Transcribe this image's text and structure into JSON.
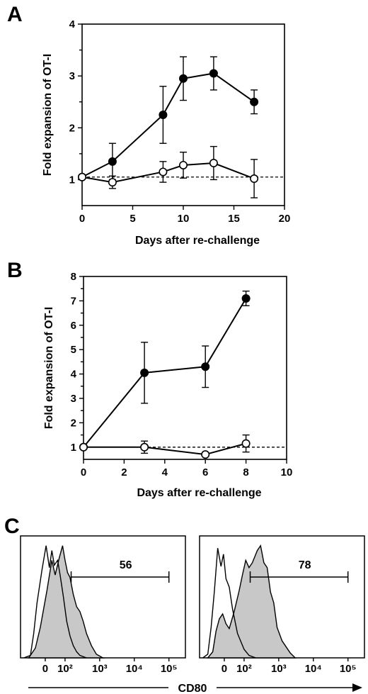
{
  "chart_data": [
    {
      "panel": "A",
      "type": "line",
      "xlabel": "Days after re-challenge",
      "ylabel": "Fold expansion of OT-I",
      "xlim": [
        0,
        20
      ],
      "ylim": [
        0.5,
        4
      ],
      "x_ticks": [
        0,
        5,
        10,
        15,
        20
      ],
      "y_ticks": [
        1,
        2,
        3,
        4
      ],
      "reference_line_y": 1.05,
      "series": [
        {
          "marker": "filled",
          "x": [
            0,
            3,
            8,
            10,
            13,
            17
          ],
          "y": [
            1.05,
            1.35,
            2.25,
            2.95,
            3.05,
            2.5
          ],
          "err": [
            0,
            0.35,
            0.55,
            0.42,
            0.32,
            0.23
          ]
        },
        {
          "marker": "open",
          "x": [
            0,
            3,
            8,
            10,
            13,
            17
          ],
          "y": [
            1.05,
            0.95,
            1.15,
            1.28,
            1.32,
            1.02
          ],
          "err": [
            0,
            0.12,
            0.2,
            0.25,
            0.32,
            0.37
          ]
        }
      ]
    },
    {
      "panel": "B",
      "type": "line",
      "xlabel": "Days after re-challenge",
      "ylabel": "Fold expansion of OT-I",
      "xlim": [
        0,
        10
      ],
      "ylim": [
        0.5,
        8
      ],
      "x_ticks": [
        0,
        2,
        4,
        6,
        8,
        10
      ],
      "y_ticks": [
        1,
        2,
        3,
        4,
        5,
        6,
        7,
        8
      ],
      "reference_line_y": 1,
      "series": [
        {
          "marker": "filled",
          "x": [
            0,
            3,
            6,
            8
          ],
          "y": [
            1,
            4.05,
            4.3,
            7.1
          ],
          "err": [
            0,
            1.25,
            0.85,
            0.3
          ]
        },
        {
          "marker": "open",
          "x": [
            0,
            3,
            6,
            8
          ],
          "y": [
            1,
            1,
            0.7,
            1.15
          ],
          "err": [
            0,
            0.25,
            0,
            0.35
          ]
        }
      ]
    },
    {
      "panel": "C",
      "type": "histogram",
      "xlabel": "CD80",
      "x_ticks": [
        "0",
        "10²",
        "10³",
        "10⁴",
        "10⁵"
      ],
      "histograms": [
        {
          "gate_label": "56",
          "gate_range": [
            150,
            100000
          ]
        },
        {
          "gate_label": "78",
          "gate_range": [
            150,
            100000
          ]
        }
      ]
    }
  ]
}
